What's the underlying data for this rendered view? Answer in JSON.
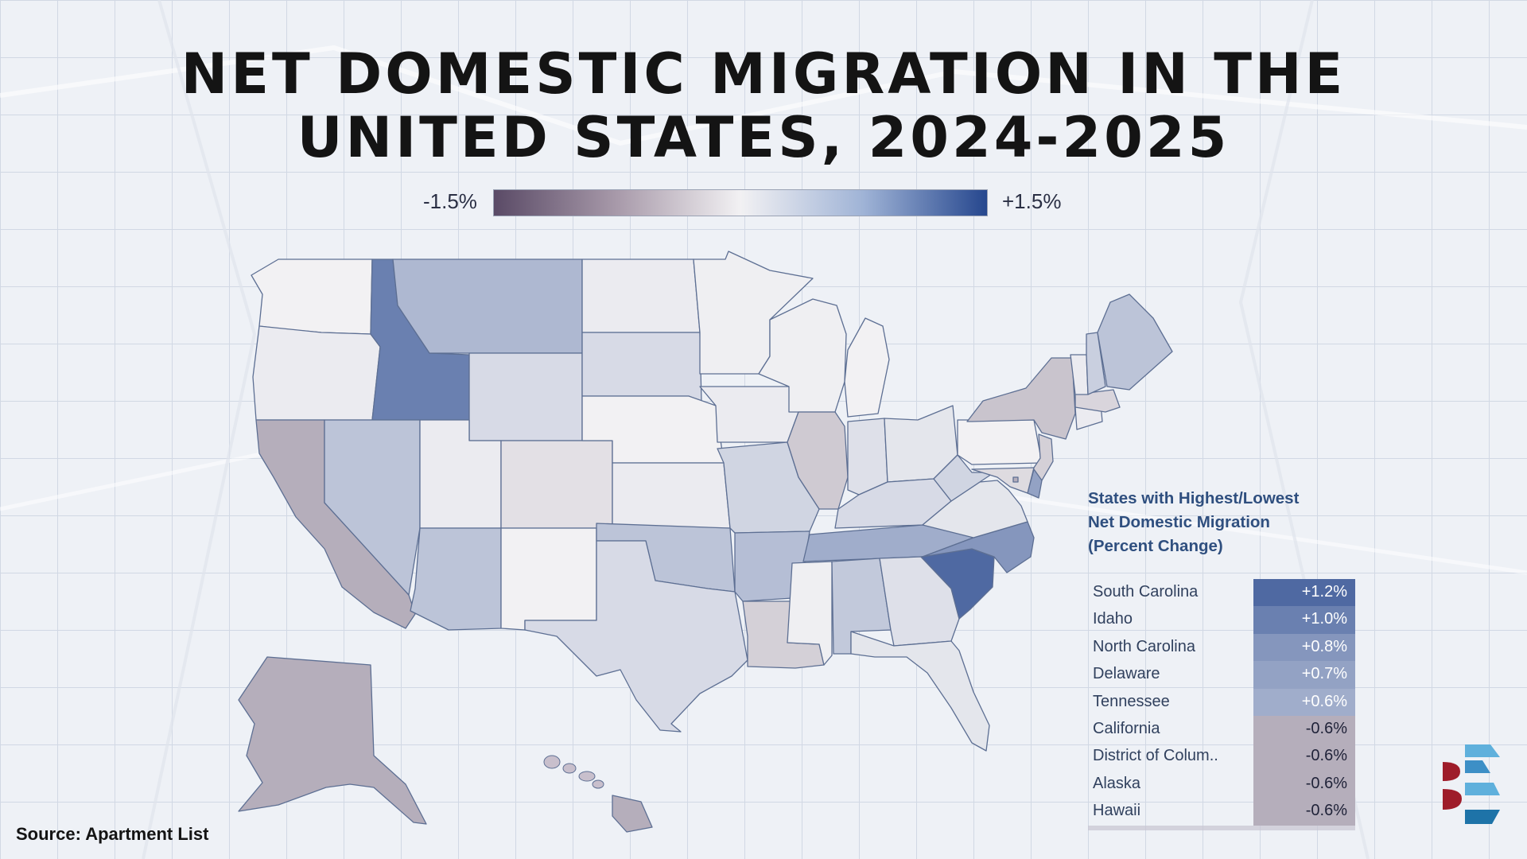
{
  "title": {
    "line1": "NET DOMESTIC MIGRATION IN THE",
    "line2": "UNITED STATES, 2024-2025"
  },
  "legend": {
    "min_label": "-1.5%",
    "max_label": "+1.5%",
    "min_value": -1.5,
    "max_value": 1.5,
    "colors": [
      "#5a4a66",
      "#f2f1f3",
      "#26478e"
    ]
  },
  "source": "Source: Apartment List",
  "table": {
    "title_line1": "States with Highest/Lowest",
    "title_line2": "Net Domestic Migration",
    "title_line3": "(Percent Change)",
    "rows": [
      {
        "name": "South Carolina",
        "value": "+1.2%",
        "pct": 1.2
      },
      {
        "name": "Idaho",
        "value": "+1.0%",
        "pct": 1.0
      },
      {
        "name": "North Carolina",
        "value": "+0.8%",
        "pct": 0.8
      },
      {
        "name": "Delaware",
        "value": "+0.7%",
        "pct": 0.7
      },
      {
        "name": "Tennessee",
        "value": "+0.6%",
        "pct": 0.6
      },
      {
        "name": "California",
        "value": "-0.6%",
        "pct": -0.6
      },
      {
        "name": "District of Colum..",
        "value": "-0.6%",
        "pct": -0.6
      },
      {
        "name": "Alaska",
        "value": "-0.6%",
        "pct": -0.6
      },
      {
        "name": "Hawaii",
        "value": "-0.6%",
        "pct": -0.6
      }
    ]
  },
  "map_data": {
    "states": {
      "WA": 0.0,
      "OR": 0.05,
      "CA": -0.6,
      "ID": 1.0,
      "NV": 0.4,
      "MT": 0.5,
      "WY": 0.2,
      "UT": 0.05,
      "AZ": 0.4,
      "CO": -0.15,
      "NM": 0.0,
      "ND": 0.05,
      "SD": 0.2,
      "NE": 0.0,
      "KS": 0.05,
      "OK": 0.4,
      "TX": 0.2,
      "MN": 0.02,
      "IA": 0.05,
      "MO": 0.25,
      "AR": 0.45,
      "LA": -0.3,
      "WI": 0.02,
      "IL": -0.35,
      "MI": 0.0,
      "IN": 0.15,
      "OH": 0.1,
      "KY": 0.2,
      "TN": 0.6,
      "MS": 0.02,
      "AL": 0.35,
      "GA": 0.15,
      "FL": 0.1,
      "SC": 1.2,
      "NC": 0.8,
      "VA": 0.1,
      "WV": 0.25,
      "PA": 0.0,
      "NY": -0.4,
      "NJ": -0.3,
      "DE": 0.7,
      "MD": -0.2,
      "DC": -0.6,
      "CT": 0.05,
      "MA": -0.25,
      "VT": 0.05,
      "NH": 0.3,
      "ME": 0.4,
      "AK": -0.6,
      "HI": -0.6
    }
  }
}
